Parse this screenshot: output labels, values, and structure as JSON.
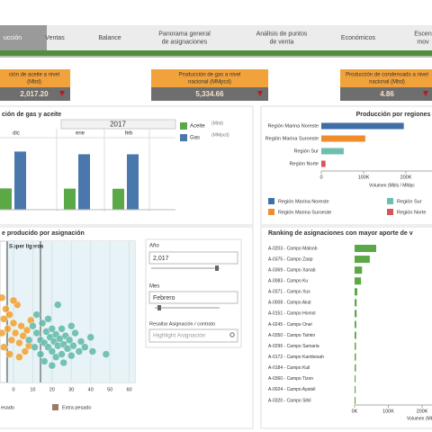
{
  "tabs": [
    [
      "ucción"
    ],
    [
      "Ventas"
    ],
    [
      "Balance"
    ],
    [
      "Panorama general",
      "de asignaciones"
    ],
    [
      "Análisis de puntos",
      "de venta"
    ],
    [
      "Económicos"
    ],
    [
      "Escen",
      "mov"
    ]
  ],
  "kpis": [
    {
      "title": [
        "ción de aceite a nivel",
        "(Mbd)"
      ],
      "value": "2,017.20"
    },
    {
      "title": [
        "Producción de gas a nivel",
        "nacional (MMpcd)"
      ],
      "value": "5,334.66"
    },
    {
      "title": [
        "Producción de condensado a nivel",
        "nacional (Mbd)"
      ],
      "value": "4.86"
    }
  ],
  "production": {
    "type": "bar",
    "title": "ción de gas y aceite",
    "year": "2017",
    "months": [
      "dic",
      "ene",
      "feb"
    ],
    "series": [
      {
        "name": "Aceite",
        "unit": "(Mbd)",
        "color": "#5aa846",
        "values": [
          2050,
          2030,
          2017
        ]
      },
      {
        "name": "Gas",
        "unit": "(MMpcd)",
        "color": "#4a78ad",
        "values": [
          5600,
          5340,
          5334
        ]
      }
    ],
    "ylim": [
      0,
      6500
    ]
  },
  "regions": {
    "type": "hbar",
    "title": "Producción por regiones",
    "categories": [
      "Región Marina Noreste",
      "Región Marina Suroeste",
      "Región Sur",
      "Región Norte"
    ],
    "values": [
      195000,
      104000,
      53000,
      10000
    ],
    "colors": [
      "#3f6fa6",
      "#f08c2c",
      "#6cbfae",
      "#d9535a"
    ],
    "xlim": [
      0,
      250000
    ],
    "xticks": [
      0,
      {
        "value": 100000,
        "label": "100K"
      },
      {
        "value": 200000,
        "label": "200K"
      }
    ],
    "xlabel": "Volumen (Mbls / MMpc",
    "legend": [
      {
        "name": "Región Marina Noreste",
        "color": "#3f6fa6"
      },
      {
        "name": "Región Sur",
        "color": "#6cbfae"
      },
      {
        "name": "Región Marina Suroeste",
        "color": "#f08c2c"
      },
      {
        "name": "Región Norte",
        "color": "#d9535a"
      }
    ]
  },
  "scatter": {
    "type": "scatter",
    "title": "e producido por asignación",
    "band_label": "Super ligeros",
    "xlim": [
      -7,
      63
    ],
    "ylim": [
      0,
      100
    ],
    "xticks": [
      0,
      10,
      20,
      30,
      40,
      50,
      60
    ],
    "series": [
      {
        "color": "#f0a030",
        "x": [
          -6,
          -5,
          -4,
          -3,
          -2,
          -1,
          0,
          1,
          2,
          3,
          4,
          5,
          6,
          7,
          8,
          -5,
          -2,
          3,
          9,
          0,
          -6
        ],
        "y": [
          60,
          45,
          52,
          38,
          48,
          30,
          42,
          35,
          55,
          28,
          40,
          33,
          22,
          37,
          26,
          25,
          20,
          18,
          44,
          58,
          35
        ]
      },
      {
        "color": "#5fb8a8",
        "x": [
          10,
          12,
          14,
          15,
          16,
          17,
          18,
          18,
          19,
          20,
          20,
          21,
          22,
          22,
          23,
          23,
          24,
          25,
          25,
          26,
          27,
          28,
          29,
          30,
          31,
          32,
          34,
          35,
          37,
          40,
          41,
          48,
          12,
          14,
          16,
          20,
          26,
          30,
          8,
          11
        ],
        "y": [
          40,
          35,
          30,
          42,
          28,
          36,
          25,
          45,
          32,
          38,
          22,
          29,
          34,
          18,
          55,
          26,
          31,
          20,
          38,
          27,
          33,
          24,
          30,
          19,
          26,
          35,
          22,
          29,
          25,
          32,
          22,
          20,
          48,
          20,
          15,
          12,
          14,
          40,
          30,
          25
        ]
      }
    ],
    "legend": [
      {
        "name": "esado",
        "color": "#f0a030"
      },
      {
        "name": "Extra pesado",
        "color": "#9c7a68"
      }
    ]
  },
  "filters": {
    "year_label": "Año",
    "year_value": "2,017",
    "month_label": "Mes",
    "month_value": "Febrero",
    "highlight_label": "Resaltar Asignación / contrato",
    "highlight_placeholder": "Highlight Asignación"
  },
  "ranking": {
    "type": "hbar",
    "title": "Ranking de asignaciones con mayor aporte de v",
    "categories": [
      "A-0203 - Campo Maloob",
      "A-0375 - Campo Zaap",
      "A-0369 - Campo Xanab",
      "A-0083 - Campo Ku",
      "A-0371 - Campo Xux",
      "A-0008 - Campo Akal",
      "A-0151 - Campo Homol",
      "A-0245 - Campo Onel",
      "A-0350 - Campo Tsimin",
      "A-0296 - Campo Samaria",
      "A-0172 - Campo Kambesah",
      "A-0184 - Campo Kuil",
      "A-0360 - Campo Tizon",
      "A-0024 - Campo Ayatsil",
      "A-0320 - Campo Sihil"
    ],
    "values": [
      64000,
      45000,
      22000,
      19000,
      8000,
      6000,
      6000,
      5000,
      5000,
      4000,
      4000,
      4000,
      3000,
      3000,
      3000
    ],
    "color": "#5aa846",
    "xlim": [
      0,
      224000
    ],
    "xticks": [
      {
        "value": 0,
        "label": "0K"
      },
      {
        "value": 100000,
        "label": "100K"
      },
      {
        "value": 200000,
        "label": "200K"
      }
    ],
    "xlabel": "Volumen (Mbls / MM"
  }
}
